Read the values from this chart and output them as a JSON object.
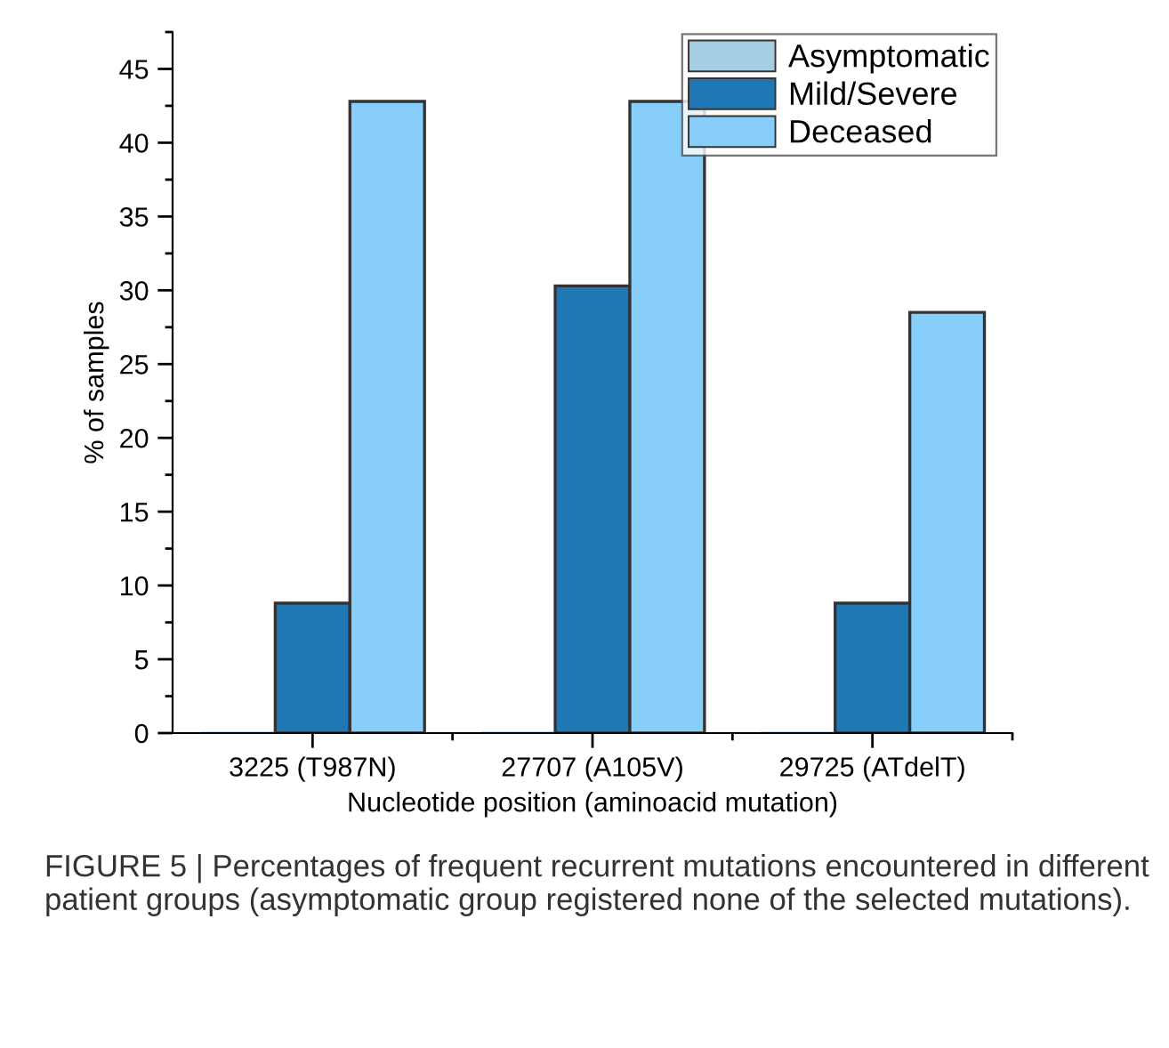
{
  "chart_data": {
    "type": "bar",
    "categories": [
      "3225 (T987N)",
      "27707 (A105V)",
      "29725 (ATdelT)"
    ],
    "series": [
      {
        "name": "Asymptomatic",
        "color": "#a6cee3",
        "values": [
          0,
          0,
          0
        ]
      },
      {
        "name": "Mild/Severe",
        "color": "#1f78b4",
        "values": [
          8.8,
          30.3,
          8.8
        ]
      },
      {
        "name": "Deceased",
        "color": "#87cefa",
        "values": [
          42.8,
          42.8,
          28.5
        ]
      }
    ],
    "xlabel": "Nucleotide position (aminoacid mutation)",
    "ylabel": "% of samples",
    "ylim": [
      0,
      47.5
    ],
    "yticks": [
      0,
      5,
      10,
      15,
      20,
      25,
      30,
      35,
      40,
      45
    ],
    "legend": "top right",
    "grid": false,
    "annotations": [
      "FIGURE 5 | Percentages of frequent recurrent mutations encountered in different patient groups (asymptomatic group registered none of the selected mutations)."
    ]
  }
}
